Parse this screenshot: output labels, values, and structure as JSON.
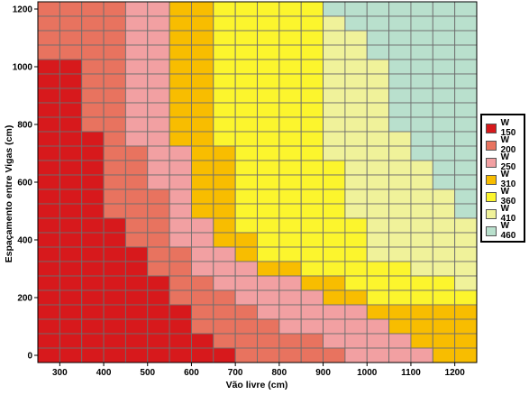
{
  "chart_data": {
    "type": "heatmap",
    "xlabel": "Vão livre (cm)",
    "ylabel": "Espaçamento entre Vigas (cm)",
    "x_ticks": [
      "300",
      "400",
      "500",
      "600",
      "700",
      "800",
      "900",
      "1000",
      "1100",
      "1200"
    ],
    "y_ticks": [
      "0",
      "200",
      "400",
      "600",
      "800",
      "1000",
      "1200"
    ],
    "xlim": [
      250,
      1250
    ],
    "ylim": [
      -25,
      1225
    ],
    "x_step": 50,
    "y_step": 50,
    "x_cells": [
      275,
      325,
      375,
      425,
      475,
      525,
      575,
      625,
      675,
      725,
      775,
      825,
      875,
      925,
      975,
      1025,
      1075,
      1125,
      1175,
      1225
    ],
    "legend": [
      {
        "label": "W 150",
        "color": "#d7191c"
      },
      {
        "label": "W 200",
        "color": "#e8735f"
      },
      {
        "label": "W 250",
        "color": "#f2a0a2"
      },
      {
        "label": "W 310",
        "color": "#f8bd00"
      },
      {
        "label": "W 360",
        "color": "#fcf52d"
      },
      {
        "label": "W 410",
        "color": "#f0f29a"
      },
      {
        "label": "W 460",
        "color": "#b9e0cd"
      }
    ],
    "rows": [
      {
        "y": 1200,
        "values": [
          1,
          1,
          1,
          1,
          2,
          2,
          3,
          3,
          4,
          4,
          4,
          4,
          4,
          6,
          6,
          6,
          6,
          6,
          6,
          6
        ]
      },
      {
        "y": 1150,
        "values": [
          1,
          1,
          1,
          1,
          2,
          2,
          3,
          3,
          4,
          4,
          4,
          4,
          4,
          5,
          6,
          6,
          6,
          6,
          6,
          6
        ]
      },
      {
        "y": 1100,
        "values": [
          1,
          1,
          1,
          1,
          2,
          2,
          3,
          3,
          4,
          4,
          4,
          4,
          4,
          5,
          5,
          6,
          6,
          6,
          6,
          6
        ]
      },
      {
        "y": 1050,
        "values": [
          1,
          1,
          1,
          1,
          2,
          2,
          3,
          3,
          4,
          4,
          4,
          4,
          4,
          5,
          5,
          6,
          6,
          6,
          6,
          6
        ]
      },
      {
        "y": 1000,
        "values": [
          0,
          0,
          1,
          1,
          2,
          2,
          3,
          3,
          4,
          4,
          4,
          4,
          4,
          5,
          5,
          5,
          6,
          6,
          6,
          6
        ]
      },
      {
        "y": 950,
        "values": [
          0,
          0,
          1,
          1,
          2,
          2,
          3,
          3,
          4,
          4,
          4,
          4,
          4,
          5,
          5,
          5,
          6,
          6,
          6,
          6
        ]
      },
      {
        "y": 900,
        "values": [
          0,
          0,
          1,
          1,
          2,
          2,
          3,
          3,
          4,
          4,
          4,
          4,
          4,
          5,
          5,
          5,
          6,
          6,
          6,
          6
        ]
      },
      {
        "y": 850,
        "values": [
          0,
          0,
          1,
          1,
          2,
          2,
          3,
          3,
          4,
          4,
          4,
          4,
          4,
          5,
          5,
          5,
          6,
          6,
          6,
          6
        ]
      },
      {
        "y": 800,
        "values": [
          0,
          0,
          1,
          1,
          2,
          2,
          3,
          3,
          4,
          4,
          4,
          4,
          4,
          5,
          5,
          5,
          6,
          6,
          6,
          6
        ]
      },
      {
        "y": 750,
        "values": [
          0,
          0,
          0,
          1,
          2,
          2,
          3,
          3,
          4,
          4,
          4,
          4,
          4,
          5,
          5,
          5,
          5,
          6,
          6,
          6
        ]
      },
      {
        "y": 700,
        "values": [
          0,
          0,
          0,
          1,
          1,
          2,
          2,
          3,
          3,
          4,
          4,
          4,
          4,
          5,
          5,
          5,
          5,
          6,
          6,
          6
        ]
      },
      {
        "y": 650,
        "values": [
          0,
          0,
          0,
          1,
          1,
          2,
          2,
          3,
          3,
          4,
          4,
          4,
          4,
          4,
          5,
          5,
          5,
          5,
          6,
          6
        ]
      },
      {
        "y": 600,
        "values": [
          0,
          0,
          0,
          1,
          1,
          2,
          2,
          3,
          3,
          4,
          4,
          4,
          4,
          4,
          5,
          5,
          5,
          5,
          6,
          6
        ]
      },
      {
        "y": 550,
        "values": [
          0,
          0,
          0,
          1,
          1,
          1,
          2,
          3,
          3,
          4,
          4,
          4,
          4,
          4,
          5,
          5,
          5,
          5,
          5,
          6
        ]
      },
      {
        "y": 500,
        "values": [
          0,
          0,
          0,
          1,
          1,
          1,
          2,
          3,
          3,
          4,
          4,
          4,
          4,
          4,
          5,
          5,
          5,
          5,
          5,
          6
        ]
      },
      {
        "y": 450,
        "values": [
          0,
          0,
          0,
          0,
          1,
          1,
          2,
          2,
          3,
          4,
          4,
          4,
          4,
          4,
          4,
          5,
          5,
          5,
          5,
          5
        ]
      },
      {
        "y": 400,
        "values": [
          0,
          0,
          0,
          0,
          1,
          1,
          2,
          2,
          3,
          3,
          4,
          4,
          4,
          4,
          4,
          5,
          5,
          5,
          5,
          5
        ]
      },
      {
        "y": 350,
        "values": [
          0,
          0,
          0,
          0,
          0,
          1,
          1,
          2,
          2,
          3,
          4,
          4,
          4,
          4,
          4,
          5,
          5,
          5,
          5,
          5
        ]
      },
      {
        "y": 300,
        "values": [
          0,
          0,
          0,
          0,
          0,
          1,
          1,
          2,
          2,
          2,
          3,
          3,
          4,
          4,
          4,
          4,
          4,
          5,
          5,
          5
        ]
      },
      {
        "y": 250,
        "values": [
          0,
          0,
          0,
          0,
          0,
          0,
          1,
          1,
          2,
          2,
          2,
          2,
          3,
          3,
          4,
          4,
          4,
          4,
          4,
          5
        ]
      },
      {
        "y": 200,
        "values": [
          0,
          0,
          0,
          0,
          0,
          0,
          1,
          1,
          1,
          2,
          2,
          2,
          2,
          3,
          3,
          4,
          4,
          4,
          4,
          4
        ]
      },
      {
        "y": 150,
        "values": [
          0,
          0,
          0,
          0,
          0,
          0,
          0,
          1,
          1,
          1,
          2,
          2,
          2,
          2,
          2,
          3,
          3,
          3,
          3,
          3
        ]
      },
      {
        "y": 100,
        "values": [
          0,
          0,
          0,
          0,
          0,
          0,
          0,
          1,
          1,
          1,
          1,
          2,
          2,
          2,
          2,
          2,
          3,
          3,
          3,
          3
        ]
      },
      {
        "y": 50,
        "values": [
          0,
          0,
          0,
          0,
          0,
          0,
          0,
          0,
          1,
          1,
          1,
          1,
          1,
          2,
          2,
          2,
          2,
          3,
          3,
          3
        ]
      },
      {
        "y": 0,
        "values": [
          0,
          0,
          0,
          0,
          0,
          0,
          0,
          0,
          0,
          1,
          1,
          1,
          1,
          1,
          2,
          2,
          2,
          2,
          3,
          3
        ]
      }
    ]
  }
}
